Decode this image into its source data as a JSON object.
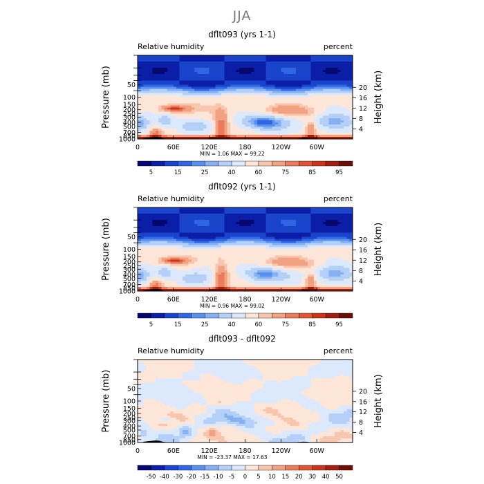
{
  "figure": {
    "title": "JJA"
  },
  "chart_data": [
    {
      "type": "heatmap",
      "title": "dflt093 (yrs 1-1)",
      "left_label": "Relative humidity",
      "right_label": "percent",
      "ylabel": "Pressure (mb)",
      "y2label": "Height (km)",
      "xticks": [
        "0",
        "60E",
        "120E",
        "180",
        "120W",
        "60W"
      ],
      "xtick_lon": [
        0,
        60,
        120,
        180,
        240,
        300
      ],
      "xlim": [
        0,
        360
      ],
      "yticks": [
        "50",
        "100",
        "150",
        "200",
        "250",
        "300",
        "400",
        "500",
        "700",
        "850",
        "1000"
      ],
      "ytick_values": [
        50,
        100,
        150,
        200,
        250,
        300,
        400,
        500,
        700,
        850,
        1000
      ],
      "extra_yticks": [
        10,
        20,
        30,
        40,
        70
      ],
      "ylim": [
        1000,
        10
      ],
      "y_scale": "log",
      "y2ticks": [
        "20",
        "16",
        "12",
        "8",
        "4"
      ],
      "y2tick_km": [
        20,
        16,
        12,
        8,
        4
      ],
      "stats": "MIN =    1.06   MAX =   99.22",
      "colorbar": {
        "labels": [
          "5",
          "15",
          "25",
          "40",
          "60",
          "75",
          "85",
          "95"
        ],
        "colors": [
          "#05066e",
          "#0b1ea8",
          "#1b44cc",
          "#2f66e3",
          "#5890ef",
          "#86b0f4",
          "#b4cff8",
          "#dce8fb",
          "#fde6d8",
          "#f8c5ad",
          "#f2a182",
          "#ea7c5c",
          "#de5634",
          "#c9351b",
          "#a31e0e",
          "#6e0f06"
        ]
      },
      "field": "rh"
    },
    {
      "type": "heatmap",
      "title": "dflt092 (yrs 1-1)",
      "left_label": "Relative humidity",
      "right_label": "percent",
      "ylabel": "Pressure (mb)",
      "y2label": "Height (km)",
      "xticks": [
        "0",
        "60E",
        "120E",
        "180",
        "120W",
        "60W"
      ],
      "xtick_lon": [
        0,
        60,
        120,
        180,
        240,
        300
      ],
      "xlim": [
        0,
        360
      ],
      "yticks": [
        "50",
        "100",
        "150",
        "200",
        "250",
        "300",
        "400",
        "500",
        "700",
        "850",
        "1000"
      ],
      "ytick_values": [
        50,
        100,
        150,
        200,
        250,
        300,
        400,
        500,
        700,
        850,
        1000
      ],
      "extra_yticks": [
        10,
        20,
        30,
        40,
        70
      ],
      "ylim": [
        1000,
        10
      ],
      "y_scale": "log",
      "y2ticks": [
        "20",
        "16",
        "12",
        "8",
        "4"
      ],
      "y2tick_km": [
        20,
        16,
        12,
        8,
        4
      ],
      "stats": "MIN =    0.96   MAX =   99.02",
      "colorbar": {
        "labels": [
          "5",
          "15",
          "25",
          "40",
          "60",
          "75",
          "85",
          "95"
        ],
        "colors": [
          "#05066e",
          "#0b1ea8",
          "#1b44cc",
          "#2f66e3",
          "#5890ef",
          "#86b0f4",
          "#b4cff8",
          "#dce8fb",
          "#fde6d8",
          "#f8c5ad",
          "#f2a182",
          "#ea7c5c",
          "#de5634",
          "#c9351b",
          "#a31e0e",
          "#6e0f06"
        ]
      },
      "field": "rh2"
    },
    {
      "type": "heatmap",
      "title": "dflt093 - dflt092",
      "left_label": "Relative humidity",
      "right_label": "percent",
      "ylabel": "Pressure (mb)",
      "y2label": "Height (km)",
      "xticks": [
        "0",
        "60E",
        "120E",
        "180",
        "120W",
        "60W"
      ],
      "xtick_lon": [
        0,
        60,
        120,
        180,
        240,
        300
      ],
      "xlim": [
        0,
        360
      ],
      "yticks": [
        "50",
        "100",
        "150",
        "200",
        "250",
        "300",
        "400",
        "500",
        "700",
        "850",
        "1000"
      ],
      "ytick_values": [
        50,
        100,
        150,
        200,
        250,
        300,
        400,
        500,
        700,
        850,
        1000
      ],
      "extra_yticks": [
        10,
        20,
        30,
        40,
        70
      ],
      "ylim": [
        1000,
        10
      ],
      "y_scale": "log",
      "y2ticks": [
        "20",
        "16",
        "12",
        "8",
        "4"
      ],
      "y2tick_km": [
        20,
        16,
        12,
        8,
        4
      ],
      "stats": "MIN =  -23.37   MAX =   17.63",
      "colorbar": {
        "labels": [
          "-50",
          "-40",
          "-30",
          "-20",
          "-15",
          "-10",
          "-5",
          "0",
          "5",
          "10",
          "15",
          "20",
          "30",
          "40",
          "50"
        ],
        "colors": [
          "#05066e",
          "#0b1ea8",
          "#1b44cc",
          "#2f66e3",
          "#5890ef",
          "#86b0f4",
          "#b4cff8",
          "#dce8fb",
          "#fde6d8",
          "#f8c5ad",
          "#f2a182",
          "#ea7c5c",
          "#de5634",
          "#c9351b",
          "#a31e0e",
          "#6e0f06"
        ]
      },
      "field": "diff"
    }
  ]
}
